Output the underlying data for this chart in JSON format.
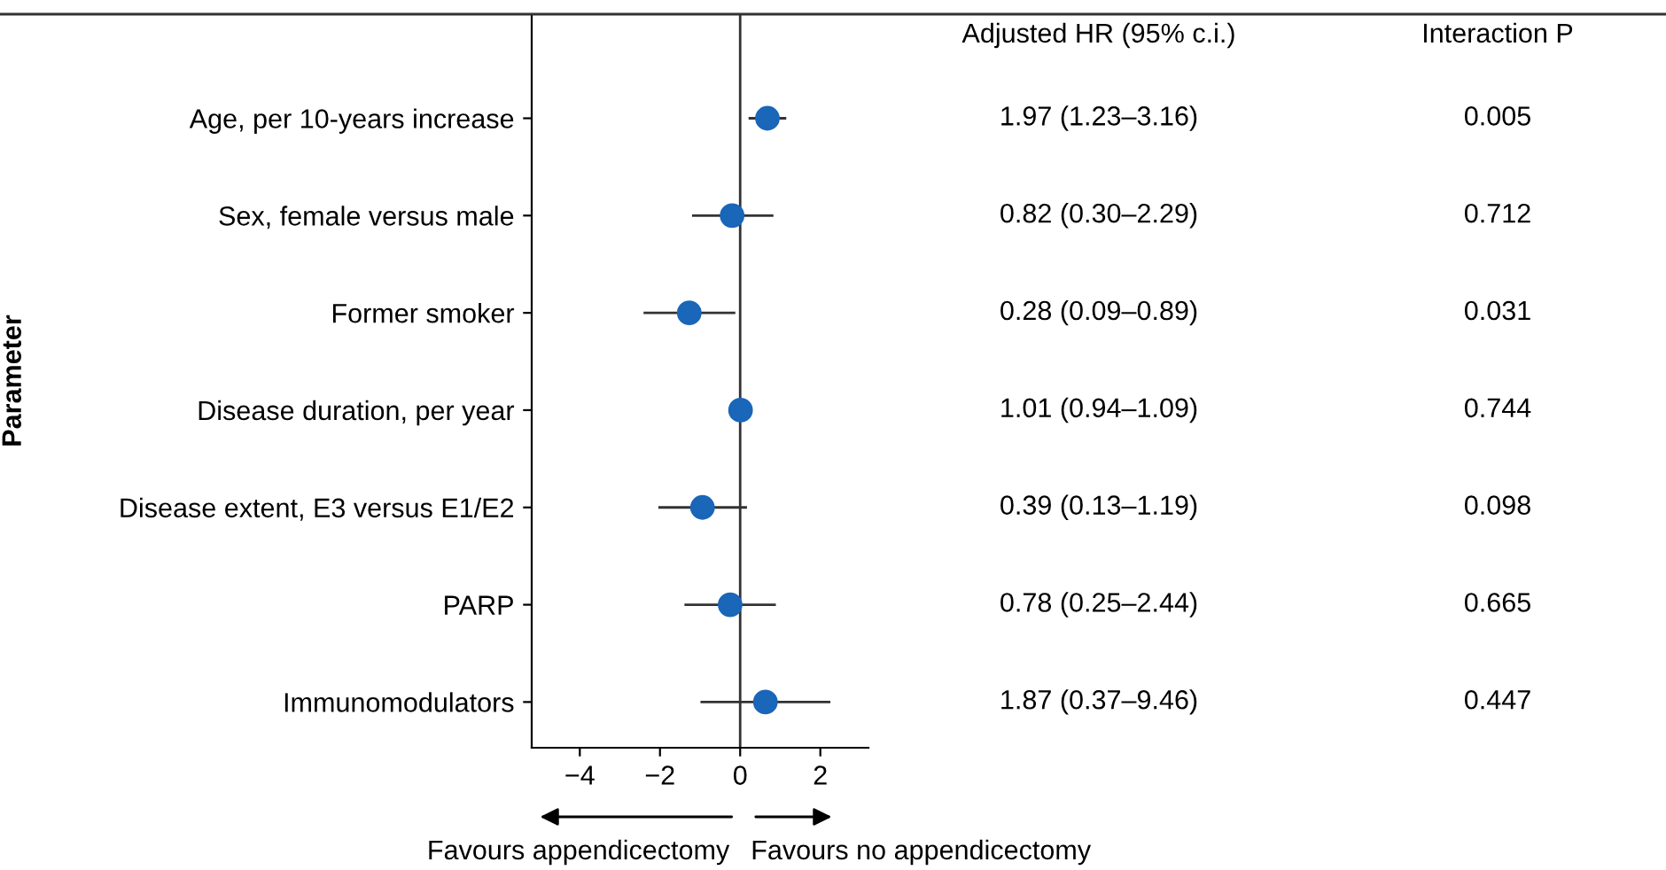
{
  "chart_data": {
    "type": "scatter",
    "orientation": "horizontal",
    "ylabel": "Parameter",
    "categories": [
      "Age, per 10-years increase",
      "Sex, female versus male",
      "Former smoker",
      "Disease duration, per year",
      "Disease extent, E3 versus E1/E2",
      "PARP",
      "Immunomodulators"
    ],
    "values": [
      0.68,
      -0.2,
      -1.27,
      0.01,
      -0.94,
      -0.25,
      0.63
    ],
    "errors": [
      [
        0.21,
        1.15
      ],
      [
        -1.2,
        0.83
      ],
      [
        -2.41,
        -0.12
      ],
      null,
      [
        -2.04,
        0.17
      ],
      [
        -1.39,
        0.89
      ],
      [
        -0.99,
        2.25
      ]
    ],
    "value_labels": [
      "1.97 (1.23–3.16)",
      "0.82 (0.30–2.29)",
      "0.28 (0.09–0.89)",
      "1.01 (0.94–1.09)",
      "0.39 (0.13–1.19)",
      "0.78 (0.25–2.44)",
      "1.87 (0.37–9.46)"
    ],
    "color": "#1a66b8",
    "marker": "circle",
    "xlim": [
      -5.2,
      3.2
    ],
    "xticks": [
      {
        "value": -4,
        "label": "−4"
      },
      {
        "value": -2,
        "label": "−2"
      },
      0,
      2
    ],
    "ref_lines": [
      {
        "axis": "x",
        "value": 0,
        "color": "#333333"
      }
    ],
    "grid": false,
    "legend": false,
    "annotations": [
      "Adjusted HR (95% c.i.)",
      "Interaction P",
      "Favours appendicectomy",
      "Favours no appendicectomy",
      "0.005",
      "0.712",
      "0.031",
      "0.744",
      "0.098",
      "0.665",
      "0.447"
    ]
  }
}
